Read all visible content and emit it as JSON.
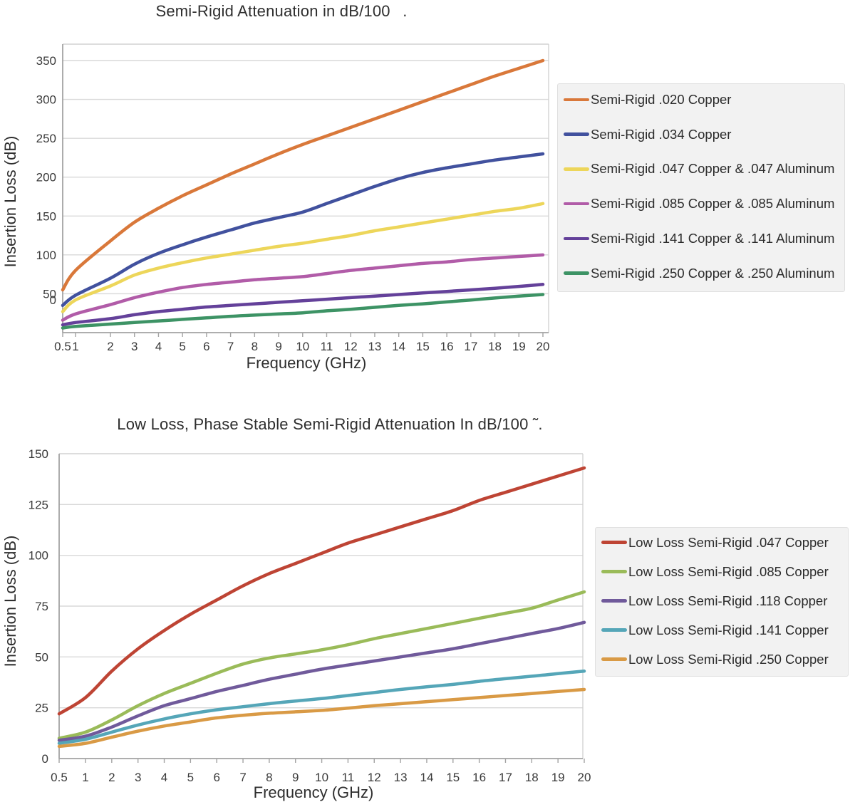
{
  "style": {
    "page_bg": "#FFFFFF",
    "grid_color": "#D9D9D9",
    "axis_color": "#A3A3A3",
    "border_color": "#D2D2D2",
    "tick_text_color": "#3A3A3A",
    "title_color": "#2E2E2E",
    "legend_bg": "#F2F2F2",
    "legend_border": "#E0E0E0",
    "legend_text_color": "#2B2B2B"
  },
  "chart_data": [
    {
      "type": "line",
      "title": "Semi-Rigid Attenuation in dB/100  .",
      "xlabel": "Frequency (GHz)",
      "ylabel": "Insertion Loss (dB)",
      "x": [
        0.5,
        1,
        2,
        3,
        4,
        5,
        6,
        7,
        8,
        9,
        10,
        11,
        12,
        13,
        14,
        15,
        16,
        17,
        18,
        19,
        20
      ],
      "x_tick_labels": [
        "0.5",
        "1",
        "2",
        "3",
        "4",
        "5",
        "6",
        "7",
        "8",
        "9",
        "10",
        "11",
        "12",
        "13",
        "14",
        "15",
        "16",
        "17",
        "18",
        "19",
        "20"
      ],
      "y_ticks": [
        0,
        50,
        100,
        150,
        200,
        250,
        300,
        350
      ],
      "y_tick_labels": [
        "0",
        "50",
        "100",
        "150",
        "200",
        "250",
        "300",
        "350"
      ],
      "ylim": [
        0,
        350
      ],
      "grid": true,
      "legend_position": "right",
      "series": [
        {
          "name": "Semi-Rigid .020 Copper",
          "color": "#D9783A",
          "values": [
            55,
            80,
            118,
            142,
            160,
            176,
            190,
            204,
            217,
            230,
            242,
            253,
            264,
            275,
            286,
            297,
            308,
            319,
            330,
            340,
            350
          ]
        },
        {
          "name": "Semi-Rigid .034 Copper",
          "color": "#41519E",
          "values": [
            35,
            48,
            70,
            88,
            102,
            113,
            123,
            132,
            141,
            148,
            155,
            166,
            177,
            188,
            198,
            206,
            212,
            217,
            222,
            226,
            230
          ]
        },
        {
          "name": "Semi-Rigid .047 Copper & .047 Aluminum",
          "color": "#EDD65A",
          "values": [
            27,
            42,
            60,
            74,
            83,
            90,
            96,
            101,
            106,
            111,
            115,
            120,
            125,
            131,
            136,
            141,
            146,
            151,
            156,
            160,
            166
          ]
        },
        {
          "name": "Semi-Rigid .085 Copper & .085 Aluminum",
          "color": "#B15CA8",
          "values": [
            16,
            24,
            36,
            45,
            52,
            58,
            62,
            65,
            68,
            70,
            72,
            76,
            80,
            83,
            86,
            89,
            91,
            94,
            96,
            98,
            100
          ]
        },
        {
          "name": "Semi-Rigid .141 Copper & .141 Aluminum",
          "color": "#64419A",
          "values": [
            10,
            13,
            18,
            23,
            27,
            30,
            33,
            35,
            37,
            39,
            41,
            43,
            45,
            47,
            49,
            51,
            53,
            55,
            57,
            59.5,
            62
          ]
        },
        {
          "name": "Semi-Rigid .250 Copper & .250 Aluminum",
          "color": "#3D9365",
          "values": [
            6,
            8,
            11,
            13,
            15,
            17,
            19,
            21,
            22.5,
            24,
            25.5,
            28,
            30,
            32.5,
            35,
            37,
            39.5,
            42,
            44.5,
            47,
            49
          ]
        }
      ]
    },
    {
      "type": "line",
      "title": "Low Loss, Phase Stable Semi-Rigid Attenuation In dB/100 ˜.",
      "xlabel": "Frequency (GHz)",
      "ylabel": "Insertion Loss (dB)",
      "x": [
        0.5,
        1,
        2,
        3,
        4,
        5,
        6,
        7,
        8,
        9,
        10,
        11,
        12,
        13,
        14,
        15,
        16,
        17,
        18,
        19,
        20
      ],
      "x_tick_labels": [
        "0.5",
        "1",
        "2",
        "3",
        "4",
        "5",
        "6",
        "7",
        "8",
        "9",
        "10",
        "11",
        "12",
        "13",
        "14",
        "15",
        "16",
        "17",
        "18",
        "19",
        "20"
      ],
      "y_ticks": [
        0,
        25,
        50,
        75,
        100,
        125,
        150
      ],
      "y_tick_labels": [
        "0",
        "25",
        "50",
        "75",
        "100",
        "125",
        "150"
      ],
      "ylim": [
        0,
        150
      ],
      "grid": true,
      "legend_position": "right",
      "series": [
        {
          "name": "Low Loss Semi-Rigid .047 Copper",
          "color": "#BE4434",
          "values": [
            22,
            30,
            43,
            54,
            63,
            71,
            78,
            85,
            91,
            96,
            101,
            106,
            110,
            114,
            118,
            122,
            127,
            131,
            135,
            139,
            143
          ]
        },
        {
          "name": "Low Loss Semi-Rigid .085 Copper",
          "color": "#9ABB59",
          "values": [
            10,
            13,
            19,
            26,
            32,
            37,
            42,
            46.5,
            49.5,
            51.5,
            53.5,
            56,
            59,
            61.5,
            64,
            66.5,
            69,
            71.5,
            74,
            78,
            82
          ]
        },
        {
          "name": "Low Loss Semi-Rigid .118 Copper",
          "color": "#705A9B",
          "values": [
            9,
            11,
            15.5,
            21,
            26,
            29.5,
            33,
            36,
            39,
            41.5,
            44,
            46,
            48,
            50,
            52,
            54,
            56.5,
            59,
            61.5,
            64,
            67
          ]
        },
        {
          "name": "Low Loss Semi-Rigid .141 Copper",
          "color": "#55A6B8",
          "values": [
            7.5,
            9.5,
            13,
            16.5,
            19.5,
            22,
            24,
            25.5,
            27,
            28.3,
            29.5,
            31,
            32.5,
            34,
            35.3,
            36.5,
            38,
            39.3,
            40.5,
            41.8,
            43
          ]
        },
        {
          "name": "Low Loss Semi-Rigid .250 Copper",
          "color": "#D99A45",
          "values": [
            6,
            7.5,
            10.5,
            13.5,
            16,
            18,
            20,
            21.3,
            22.3,
            23,
            23.7,
            24.8,
            26,
            27,
            28,
            29,
            30,
            31,
            32,
            33,
            34
          ]
        }
      ]
    }
  ]
}
